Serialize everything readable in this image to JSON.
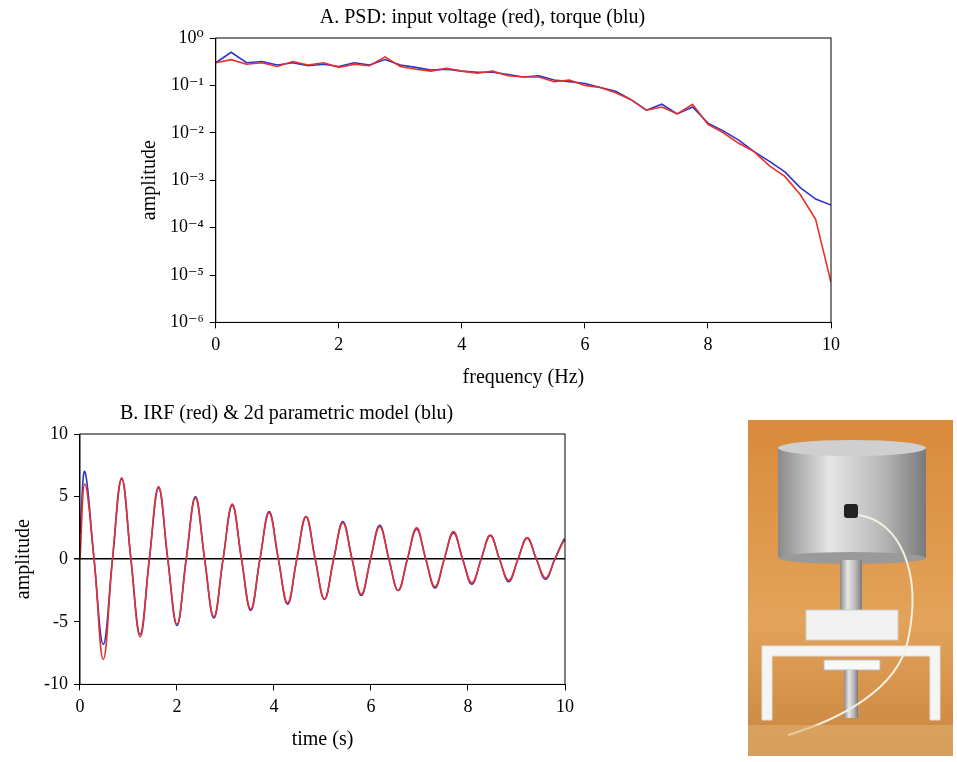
{
  "chart_data": [
    {
      "type": "line",
      "title": "A. PSD: input voltage (red), torque (blu)",
      "x_label": "frequency (Hz)",
      "y_label": "amplitude",
      "log": "y",
      "grid": false,
      "xlim": [
        0,
        10
      ],
      "ylim": [
        1e-06,
        1
      ],
      "xticks": [
        0,
        2,
        4,
        6,
        8,
        10
      ],
      "yticks": [
        {
          "value": 1e-06,
          "label": "10⁻⁶"
        },
        {
          "value": 1e-05,
          "label": "10⁻⁵"
        },
        {
          "value": 0.0001,
          "label": "10⁻⁴"
        },
        {
          "value": 0.001,
          "label": "10⁻³"
        },
        {
          "value": 0.01,
          "label": "10⁻²"
        },
        {
          "value": 0.1,
          "label": "10⁻¹"
        },
        {
          "value": 1,
          "label": "10⁰"
        }
      ],
      "x": [
        0,
        0.25,
        0.5,
        0.75,
        1,
        1.25,
        1.5,
        1.75,
        2,
        2.25,
        2.5,
        2.75,
        3,
        3.25,
        3.5,
        3.75,
        4,
        4.25,
        4.5,
        4.75,
        5,
        5.25,
        5.5,
        5.75,
        6,
        6.25,
        6.5,
        6.75,
        7,
        7.25,
        7.5,
        7.75,
        8,
        8.25,
        8.5,
        8.75,
        9,
        9.25,
        9.5,
        9.75,
        10
      ],
      "series": [
        {
          "name": "input voltage",
          "color": "#e8302a",
          "marker": "none",
          "line_style": "solid",
          "values": [
            0.3,
            0.35,
            0.28,
            0.3,
            0.25,
            0.32,
            0.27,
            0.3,
            0.24,
            0.28,
            0.26,
            0.4,
            0.25,
            0.22,
            0.2,
            0.23,
            0.2,
            0.18,
            0.2,
            0.16,
            0.15,
            0.15,
            0.12,
            0.13,
            0.1,
            0.09,
            0.07,
            0.05,
            0.03,
            0.035,
            0.025,
            0.04,
            0.015,
            0.01,
            0.006,
            0.004,
            0.002,
            0.0012,
            0.0005,
            0.00015,
            7e-06
          ]
        },
        {
          "name": "torque",
          "color": "#2b35c9",
          "marker": "none",
          "line_style": "solid",
          "values": [
            0.3,
            0.5,
            0.3,
            0.32,
            0.27,
            0.3,
            0.26,
            0.28,
            0.25,
            0.3,
            0.27,
            0.35,
            0.27,
            0.24,
            0.21,
            0.22,
            0.2,
            0.19,
            0.19,
            0.17,
            0.15,
            0.16,
            0.13,
            0.12,
            0.11,
            0.09,
            0.075,
            0.05,
            0.03,
            0.04,
            0.025,
            0.035,
            0.016,
            0.011,
            0.007,
            0.004,
            0.0025,
            0.0015,
            0.0007,
            0.0004,
            0.0003
          ]
        }
      ]
    },
    {
      "type": "line",
      "title": "B. IRF (red) & 2d parametric model (blu)",
      "x_label": "time (s)",
      "y_label": "amplitude",
      "grid": false,
      "xlim": [
        0,
        10
      ],
      "ylim": [
        -10,
        10
      ],
      "xticks": [
        0,
        2,
        4,
        6,
        8,
        10
      ],
      "yticks": [
        -10,
        -5,
        0,
        5,
        10
      ],
      "x": [
        0,
        0.1,
        0.29,
        0.48,
        0.67,
        0.86,
        1.05,
        1.24,
        1.43,
        1.62,
        1.81,
        2.0,
        2.19,
        2.38,
        2.57,
        2.76,
        2.95,
        3.14,
        3.33,
        3.52,
        3.71,
        3.9,
        4.09,
        4.28,
        4.47,
        4.66,
        4.85,
        5.04,
        5.23,
        5.42,
        5.61,
        5.8,
        5.99,
        6.18,
        6.37,
        6.56,
        6.75,
        6.94,
        7.13,
        7.32,
        7.51,
        7.7,
        7.89,
        8.08,
        8.27,
        8.46,
        8.65,
        8.84,
        9.03,
        9.22,
        9.41,
        9.6,
        9.79,
        9.98,
        10
      ],
      "series": [
        {
          "name": "IRF",
          "color": "#e8302a",
          "marker": "none",
          "line_style": "solid",
          "values": [
            0,
            6.0,
            0,
            -8.0,
            0,
            6.5,
            0,
            -6.2,
            0,
            5.8,
            0,
            -5.2,
            0,
            4.9,
            0,
            -4.6,
            0,
            4.4,
            0,
            -4.0,
            0,
            3.7,
            0,
            -3.5,
            0,
            3.4,
            0,
            -3.2,
            0,
            2.9,
            0,
            -2.8,
            0,
            2.6,
            0,
            -2.5,
            0,
            2.5,
            0,
            -2.2,
            0,
            2.2,
            0,
            -1.9,
            0,
            1.9,
            0,
            -1.7,
            0,
            1.7,
            0,
            -1.5,
            0,
            1.5,
            1.4
          ]
        },
        {
          "name": "2d parametric model",
          "color": "#2b35c9",
          "marker": "none",
          "line_style": "solid",
          "values": [
            2,
            7.0,
            0,
            -6.8,
            0,
            6.4,
            0,
            -6.0,
            0,
            5.7,
            0,
            -5.3,
            0,
            5.0,
            0,
            -4.7,
            0,
            4.3,
            0,
            -4.1,
            0,
            3.8,
            0,
            -3.6,
            0,
            3.4,
            0,
            -3.2,
            0,
            3.0,
            0,
            -2.9,
            0,
            2.7,
            0,
            -2.5,
            0,
            2.4,
            0,
            -2.3,
            0,
            2.1,
            0,
            -2.0,
            0,
            1.9,
            0,
            -1.8,
            0,
            1.7,
            0,
            -1.6,
            0,
            1.6,
            1.5
          ]
        }
      ]
    }
  ]
}
